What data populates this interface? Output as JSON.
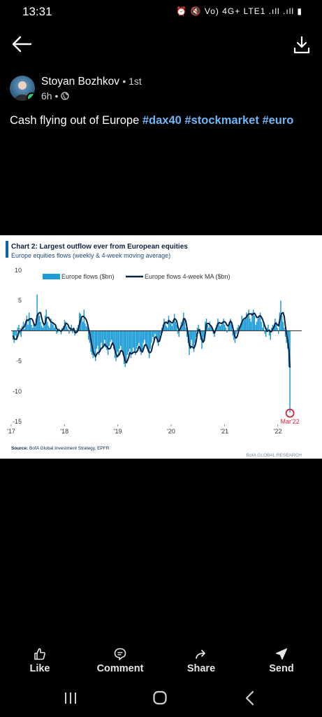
{
  "status_bar": {
    "time": "13:31",
    "icons_text": "⏰ 🔇 Vo) 4G+ LTE1 .ıll .ıll ▮"
  },
  "header": {
    "back_icon": "arrow-left-icon",
    "download_icon": "download-icon"
  },
  "post": {
    "author": "Stoyan Bozhkov",
    "connection": "• 1st",
    "time": "6h •",
    "visibility_icon": "globe-icon",
    "text_plain": "Cash flying out of Europe ",
    "hashtags": [
      "#dax40",
      "#stockmarket",
      "#euro"
    ]
  },
  "chart": {
    "title": "Chart 2: Largest outflow ever from European equities",
    "subtitle": "Europe equities flows (weekly & 4-week moving average)",
    "source_label": "Source:",
    "source_text": "BofA Global Investment Strategy, EPFR",
    "branding": "BofA GLOBAL RESEARCH",
    "annotation": "Mar'22",
    "colors": {
      "bars": "#1b9bd7",
      "ma": "#0b2240",
      "accent": "#d1263a",
      "title": "#0b2240"
    }
  },
  "chart_data": {
    "type": "bar",
    "title": "Chart 2: Largest outflow ever from European equities",
    "subtitle": "Europe equities flows (weekly & 4-week moving average)",
    "ylim": [
      -15,
      10
    ],
    "yticks": [
      "10",
      "5",
      "0",
      "-5",
      "-10",
      "-15"
    ],
    "ytick_values": [
      10,
      5,
      0,
      -5,
      -10,
      -15
    ],
    "xticks": [
      "'17",
      "'18",
      "'19",
      "'20",
      "'21",
      "'22"
    ],
    "x_range": [
      2017.0,
      2022.45
    ],
    "series": [
      {
        "name": "Europe flows ($bn)",
        "type": "bar",
        "values": [
          -1.5,
          -2.0,
          -0.8,
          -1.2,
          0.5,
          1.0,
          -0.6,
          -1.0,
          0.8,
          1.5,
          0.3,
          1.5,
          2.5,
          1.0,
          3.0,
          2.0,
          1.0,
          0.5,
          1.2,
          0.6,
          2.0,
          6.0,
          3.0,
          2.5,
          1.5,
          0.8,
          0.5,
          1.0,
          2.5,
          3.5,
          1.5,
          0.8,
          0.5,
          2.0,
          1.5,
          1.0,
          0.5,
          0.8,
          -0.5,
          -0.3,
          0.4,
          0.2,
          -0.6,
          0.5,
          0.8,
          1.8,
          1.5,
          0.7,
          0.3,
          -0.5,
          0.6,
          1.0,
          -0.4,
          0.2,
          -0.8,
          -0.5,
          0.5,
          1.0,
          3.0,
          2.8,
          2.0,
          1.5,
          3.5,
          1.2,
          0.8,
          0.6,
          -1.5,
          -2.0,
          -3.5,
          -4.0,
          -4.5,
          -3.8,
          -5.0,
          -3.0,
          -2.5,
          -4.0,
          -3.5,
          -2.0,
          -3.0,
          -2.5,
          -1.5,
          -2.8,
          -3.2,
          -4.0,
          -2.5,
          -1.8,
          -1.5,
          -2.2,
          -3.0,
          -4.5,
          -5.0,
          -3.5,
          -4.2,
          -3.0,
          -2.5,
          -3.5,
          -4.0,
          -5.5,
          -6.0,
          -5.0,
          -4.0,
          -3.5,
          -3.0,
          -4.5,
          -3.8,
          -2.8,
          -3.5,
          -4.0,
          -3.0,
          -2.5,
          -2.0,
          -3.5,
          -4.0,
          -3.2,
          -2.0,
          -1.5,
          -2.5,
          -3.0,
          -3.5,
          -4.5,
          -3.0,
          -2.0,
          -1.0,
          -1.5,
          -0.5,
          -1.0,
          -2.0,
          -2.5,
          -1.5,
          -0.5,
          0.5,
          1.0,
          2.0,
          1.5,
          0.8,
          0.5,
          2.5,
          1.5,
          1.2,
          0.8,
          1.8,
          2.8,
          1.5,
          1.0,
          -0.5,
          -1.0,
          0.5,
          1.5,
          1.0,
          3.0,
          2.0,
          0.5,
          -1.0,
          -2.0,
          -4.0,
          -3.0,
          -1.5,
          -2.5,
          -3.5,
          -2.0,
          -1.0,
          0.5,
          1.0,
          -0.5,
          -1.5,
          -3.0,
          -2.0,
          -1.0,
          1.5,
          2.0,
          1.0,
          0.5,
          1.5,
          0.8,
          0.3,
          -0.5,
          -1.0,
          0.5,
          1.0,
          2.0,
          1.5,
          0.8,
          1.0,
          1.5,
          2.0,
          1.0,
          0.5,
          -0.3,
          0.8,
          1.5,
          2.0,
          1.0,
          -0.8,
          -1.5,
          -2.0,
          -0.5,
          0.5,
          1.0,
          0.8,
          1.2,
          2.5,
          1.5,
          1.8,
          2.2,
          3.0,
          2.5,
          3.5,
          2.0,
          1.5,
          3.0,
          3.5,
          2.5,
          1.0,
          1.5,
          2.0,
          2.5,
          3.0,
          1.5,
          0.5,
          1.5,
          -0.5,
          -1.0,
          0.5,
          1.0,
          -0.8,
          -1.5,
          0.5,
          1.0,
          0.8,
          2.0,
          1.5,
          0.5,
          -0.5,
          3.0,
          5.0,
          2.5,
          1.5,
          0.5,
          -1.0,
          -2.0,
          -3.0,
          -6.0,
          -13.5
        ],
        "color": "#1b9bd7"
      },
      {
        "name": "Europe flows 4-week MA ($bn)",
        "type": "line",
        "values": [
          -0.8,
          -1.3,
          -1.4,
          -1.4,
          -0.9,
          -0.1,
          0.0,
          0.0,
          0.4,
          0.5,
          0.7,
          1.3,
          1.8,
          1.7,
          1.9,
          2.0,
          2.0,
          1.8,
          1.3,
          0.8,
          1.1,
          2.5,
          2.8,
          3.0,
          3.0,
          2.1,
          1.4,
          1.0,
          1.2,
          2.1,
          2.2,
          2.2,
          1.8,
          1.5,
          1.4,
          1.3,
          1.1,
          1.0,
          0.4,
          0.1,
          0.1,
          0.0,
          -0.1,
          0.2,
          0.3,
          0.7,
          1.2,
          1.2,
          1.0,
          0.5,
          0.3,
          0.3,
          0.2,
          0.4,
          -0.3,
          -0.3,
          -0.2,
          0.2,
          1.1,
          1.8,
          2.3,
          2.4,
          2.3,
          2.1,
          1.8,
          1.2,
          0.3,
          -0.4,
          -1.5,
          -2.5,
          -3.5,
          -3.9,
          -4.3,
          -3.9,
          -3.6,
          -3.6,
          -3.3,
          -2.9,
          -2.8,
          -2.6,
          -2.2,
          -2.5,
          -2.6,
          -2.9,
          -3.0,
          -2.9,
          -2.4,
          -2.0,
          -2.4,
          -3.2,
          -3.8,
          -4.3,
          -4.1,
          -3.9,
          -3.3,
          -3.3,
          -3.5,
          -4.3,
          -5.0,
          -5.3,
          -4.9,
          -4.4,
          -3.6,
          -3.8,
          -3.8,
          -3.6,
          -3.5,
          -3.6,
          -3.5,
          -3.2,
          -2.6,
          -2.9,
          -3.3,
          -3.5,
          -3.0,
          -2.4,
          -2.3,
          -2.6,
          -3.1,
          -3.6,
          -3.6,
          -3.3,
          -2.4,
          -1.9,
          -1.1,
          -1.0,
          -1.4,
          -1.8,
          -1.7,
          -1.0,
          -0.3,
          0.4,
          1.2,
          1.4,
          1.4,
          1.2,
          1.7,
          1.6,
          1.4,
          1.3,
          1.5,
          2.0,
          1.9,
          1.6,
          0.7,
          0.0,
          0.3,
          0.8,
          1.0,
          2.0,
          2.0,
          1.6,
          0.5,
          -0.6,
          -2.3,
          -2.8,
          -2.6,
          -2.7,
          -2.9,
          -2.5,
          -1.8,
          -0.5,
          0.1,
          0.2,
          -0.8,
          -1.5,
          -1.9,
          -1.6,
          -0.4,
          1.1,
          1.2,
          1.2,
          1.0,
          0.8,
          0.5,
          0.0,
          -0.4,
          0.1,
          0.6,
          1.2,
          1.3,
          1.3,
          1.2,
          1.3,
          1.5,
          1.5,
          1.3,
          0.9,
          0.8,
          1.2,
          1.6,
          1.4,
          0.6,
          -0.3,
          -1.0,
          -1.2,
          -0.9,
          -0.1,
          0.5,
          0.9,
          1.4,
          1.8,
          2.0,
          2.1,
          2.3,
          2.6,
          2.8,
          2.8,
          2.8,
          2.6,
          2.8,
          2.9,
          2.6,
          2.2,
          2.2,
          2.4,
          2.5,
          2.3,
          1.9,
          1.4,
          0.8,
          0.3,
          -0.1,
          0.0,
          0.1,
          -0.2,
          -0.1,
          0.3,
          0.6,
          1.2,
          1.2,
          1.0,
          0.8,
          1.7,
          2.5,
          2.9,
          3.0,
          2.4,
          0.8,
          -0.5,
          -1.6,
          -3.0,
          -6.1
        ],
        "color": "#0b2240"
      }
    ],
    "grid": false,
    "legend": "top",
    "annotation": {
      "label": "Mar'22",
      "at": "last value"
    }
  },
  "actions": {
    "like": "Like",
    "comment": "Comment",
    "share": "Share",
    "send": "Send"
  },
  "navbar": {
    "recents_icon": "recent-apps-icon",
    "home_icon": "home-icon",
    "back_icon": "back-chevron-icon"
  }
}
